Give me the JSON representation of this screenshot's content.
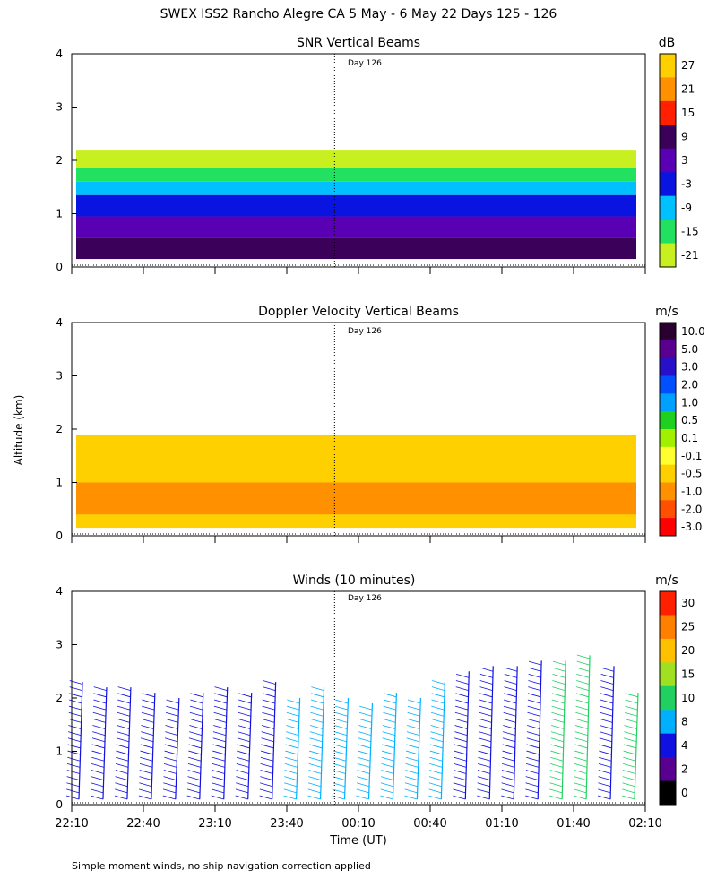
{
  "title": "SWEX ISS2 Rancho Alegre CA   5 May -  6 May 22 Days 125 - 126",
  "y_axis_label": "Altitude (km)",
  "footnote": "Simple moment winds, no ship navigation correction applied",
  "chart_data": [
    {
      "id": "snr",
      "type": "heatmap",
      "title": "SNR Vertical Beams",
      "day_marker_label": "Day 126",
      "unit": "dB",
      "ylim": [
        0,
        4
      ],
      "yticks": [
        "0",
        "1",
        "2",
        "3",
        "4"
      ],
      "colorbar": {
        "labels": [
          "27",
          "21",
          "15",
          "9",
          "3",
          "-3",
          "-9",
          "-15",
          "-21"
        ],
        "colors": [
          "#ffd000",
          "#ff9000",
          "#ff2000",
          "#3a005a",
          "#5a00b4",
          "#0a14e0",
          "#00c0ff",
          "#22e060",
          "#c8f020"
        ]
      },
      "bands": [
        {
          "from": 0.15,
          "to": 0.55,
          "color": "#3a005a"
        },
        {
          "from": 0.55,
          "to": 0.95,
          "color": "#5a00b4"
        },
        {
          "from": 0.95,
          "to": 1.35,
          "color": "#0a14e0"
        },
        {
          "from": 1.35,
          "to": 1.6,
          "color": "#00c0ff"
        },
        {
          "from": 1.6,
          "to": 1.85,
          "color": "#22e060"
        },
        {
          "from": 1.85,
          "to": 2.2,
          "color": "#c8f020"
        }
      ]
    },
    {
      "id": "doppler",
      "type": "heatmap",
      "title": "Doppler Velocity Vertical Beams",
      "day_marker_label": "Day 126",
      "unit": "m/s",
      "ylim": [
        0,
        4
      ],
      "yticks": [
        "0",
        "1",
        "2",
        "3",
        "4"
      ],
      "colorbar": {
        "labels": [
          "10.0",
          "5.0",
          "3.0",
          "2.0",
          "1.0",
          "0.5",
          "0.1",
          "-0.1",
          "-0.5",
          "-1.0",
          "-2.0",
          "-3.0"
        ],
        "colors": [
          "#2a0030",
          "#5a0090",
          "#2810c8",
          "#0050ff",
          "#00a0ff",
          "#20d020",
          "#a0f000",
          "#ffff30",
          "#ffd000",
          "#ff9000",
          "#ff5000",
          "#ff0000"
        ]
      },
      "bands": [
        {
          "from": 0.15,
          "to": 1.9,
          "color": "#ffd000"
        },
        {
          "from": 0.4,
          "to": 1.0,
          "color": "#ff9000"
        }
      ]
    },
    {
      "id": "winds",
      "type": "scatter",
      "title": "Winds (10 minutes)",
      "day_marker_label": "Day 126",
      "unit": "m/s",
      "ylim": [
        0,
        4
      ],
      "yticks": [
        "0",
        "1",
        "2",
        "3",
        "4"
      ],
      "xlabel": "Time (UT)",
      "xticks": [
        "22:10",
        "22:40",
        "23:10",
        "23:40",
        "00:10",
        "00:40",
        "01:10",
        "01:40",
        "02:10"
      ],
      "colorbar": {
        "labels": [
          "30",
          "25",
          "20",
          "15",
          "10",
          "8",
          "4",
          "2",
          "0"
        ],
        "colors": [
          "#ff2000",
          "#ff8000",
          "#ffc000",
          "#a0e020",
          "#20d060",
          "#00b0ff",
          "#1010e0",
          "#5a0090",
          "#000000"
        ]
      },
      "profiles": [
        {
          "time": "22:10",
          "top_km": 2.3,
          "color": "#1010e0"
        },
        {
          "time": "22:20",
          "top_km": 2.2,
          "color": "#1010e0"
        },
        {
          "time": "22:30",
          "top_km": 2.2,
          "color": "#1010e0"
        },
        {
          "time": "22:40",
          "top_km": 2.1,
          "color": "#1010e0"
        },
        {
          "time": "22:50",
          "top_km": 2.0,
          "color": "#1010e0"
        },
        {
          "time": "23:00",
          "top_km": 2.1,
          "color": "#1010e0"
        },
        {
          "time": "23:10",
          "top_km": 2.2,
          "color": "#1010e0"
        },
        {
          "time": "23:20",
          "top_km": 2.1,
          "color": "#1010e0"
        },
        {
          "time": "23:30",
          "top_km": 2.3,
          "color": "#1010e0"
        },
        {
          "time": "23:40",
          "top_km": 2.0,
          "color": "#00b0ff"
        },
        {
          "time": "23:50",
          "top_km": 2.2,
          "color": "#00b0ff"
        },
        {
          "time": "00:00",
          "top_km": 2.0,
          "color": "#00b0ff"
        },
        {
          "time": "00:10",
          "top_km": 1.9,
          "color": "#00b0ff"
        },
        {
          "time": "00:20",
          "top_km": 2.1,
          "color": "#00b0ff"
        },
        {
          "time": "00:30",
          "top_km": 2.0,
          "color": "#00b0ff"
        },
        {
          "time": "00:40",
          "top_km": 2.3,
          "color": "#00b0ff"
        },
        {
          "time": "00:50",
          "top_km": 2.5,
          "color": "#1010e0"
        },
        {
          "time": "01:00",
          "top_km": 2.6,
          "color": "#1010e0"
        },
        {
          "time": "01:10",
          "top_km": 2.6,
          "color": "#1010e0"
        },
        {
          "time": "01:20",
          "top_km": 2.7,
          "color": "#1010e0"
        },
        {
          "time": "01:30",
          "top_km": 2.7,
          "color": "#20d060"
        },
        {
          "time": "01:40",
          "top_km": 2.8,
          "color": "#20d060"
        },
        {
          "time": "01:50",
          "top_km": 2.6,
          "color": "#1010e0"
        },
        {
          "time": "02:00",
          "top_km": 2.1,
          "color": "#20d060"
        }
      ]
    }
  ]
}
